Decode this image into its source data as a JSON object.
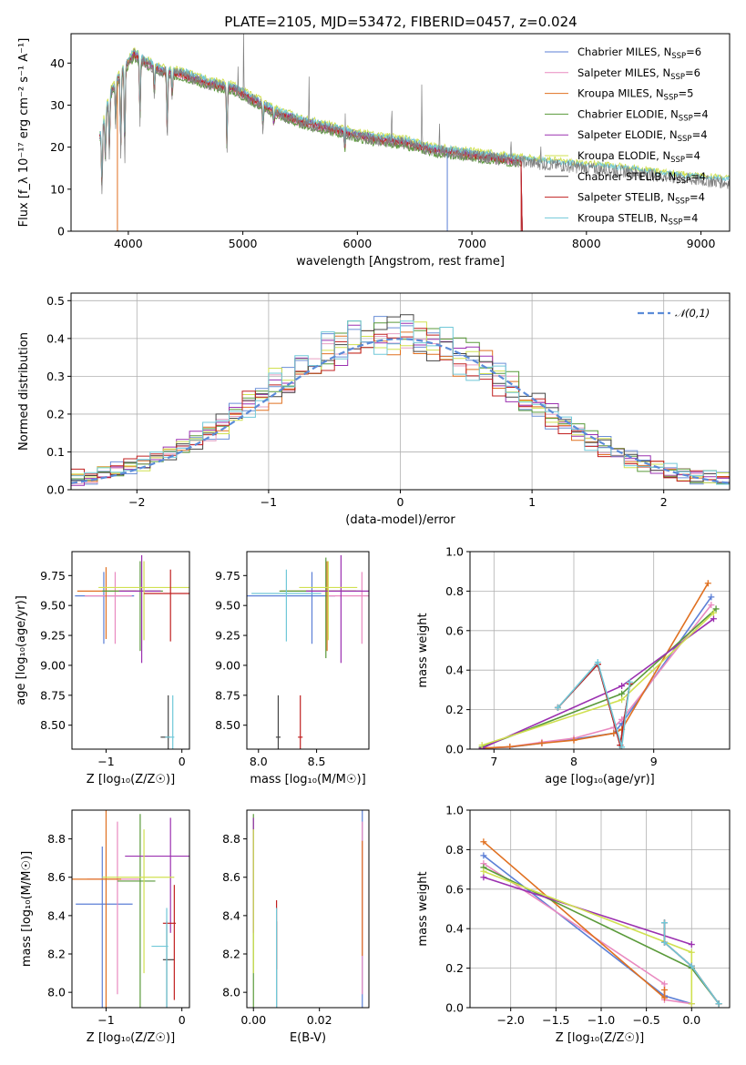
{
  "title": "PLATE=2105, MJD=53472, FIBERID=0457, z=0.024",
  "colors": [
    "#6b8fd6",
    "#e6a0c4",
    "#b8860b",
    "#5a9a5a",
    "#9b30c0",
    "#d8e66a",
    "#333333",
    "#b22222",
    "#7dd8e8"
  ],
  "model_colors": [
    "#5b7fd6",
    "#e98ac0",
    "#e07020",
    "#5a9a3a",
    "#9b30b0",
    "#d0e050",
    "#444444",
    "#c02020",
    "#70c8d8"
  ],
  "legend": [
    {
      "name": "Chabrier MILES",
      "nssp": "6"
    },
    {
      "name": "Salpeter MILES",
      "nssp": "6"
    },
    {
      "name": "Kroupa MILES",
      "nssp": "5"
    },
    {
      "name": "Chabrier ELODIE",
      "nssp": "4"
    },
    {
      "name": "Salpeter ELODIE",
      "nssp": "4"
    },
    {
      "name": "Kroupa ELODIE",
      "nssp": "4"
    },
    {
      "name": "Chabrier STELIB",
      "nssp": "4"
    },
    {
      "name": "Salpeter STELIB",
      "nssp": "4"
    },
    {
      "name": "Kroupa STELIB",
      "nssp": "4"
    }
  ],
  "chart_data": [
    {
      "id": "spectrum",
      "type": "line",
      "xlabel": "wavelength [Angstrom, rest frame]",
      "ylabel": "Flux [f_λ 10⁻¹⁷ erg cm⁻² s⁻¹ A⁻¹]",
      "xlim": [
        3500,
        9250
      ],
      "ylim": [
        0,
        47
      ],
      "xticks": [
        4000,
        5000,
        6000,
        7000,
        8000,
        9000
      ],
      "yticks": [
        0,
        10,
        20,
        30,
        40
      ],
      "continuum": [
        [
          3750,
          22
        ],
        [
          3850,
          33
        ],
        [
          3950,
          38
        ],
        [
          4050,
          42
        ],
        [
          4150,
          40
        ],
        [
          4300,
          38
        ],
        [
          4500,
          37
        ],
        [
          4700,
          35
        ],
        [
          4900,
          34
        ],
        [
          5100,
          31
        ],
        [
          5300,
          28
        ],
        [
          5500,
          26
        ],
        [
          5800,
          24
        ],
        [
          6100,
          22
        ],
        [
          6400,
          21
        ],
        [
          6700,
          19
        ],
        [
          7000,
          18
        ],
        [
          7300,
          17
        ],
        [
          7600,
          16
        ],
        [
          8000,
          15
        ],
        [
          8400,
          14
        ],
        [
          8800,
          12.5
        ],
        [
          9250,
          11.5
        ]
      ],
      "absorption": [
        [
          3770,
          14
        ],
        [
          3800,
          10
        ],
        [
          3835,
          12
        ],
        [
          3890,
          9
        ],
        [
          3934,
          18
        ],
        [
          3969,
          20
        ],
        [
          4102,
          14
        ],
        [
          4227,
          6
        ],
        [
          4340,
          14
        ],
        [
          4383,
          6
        ],
        [
          4861,
          14
        ],
        [
          5175,
          5
        ],
        [
          5270,
          3
        ],
        [
          5890,
          4
        ]
      ],
      "emission": [
        [
          4959,
          8
        ],
        [
          5007,
          18
        ],
        [
          5577,
          15
        ],
        [
          5893,
          10
        ],
        [
          6300,
          12
        ],
        [
          6563,
          16
        ],
        [
          6717,
          8
        ],
        [
          7340,
          8
        ],
        [
          7600,
          6
        ]
      ]
    },
    {
      "id": "residuals",
      "type": "histogram",
      "xlabel": "(data-model)/error",
      "ylabel": "Normed distribution",
      "xlim": [
        -2.5,
        2.5
      ],
      "ylim": [
        0,
        0.52
      ],
      "xticks": [
        -2,
        -1,
        0,
        1,
        2
      ],
      "yticks": [
        0.0,
        0.1,
        0.2,
        0.3,
        0.4,
        0.5
      ],
      "bin_width": 0.1,
      "curve_label": "𝒩(0,1)",
      "profile": [
        0.04,
        0.045,
        0.05,
        0.055,
        0.06,
        0.065,
        0.07,
        0.075,
        0.085,
        0.095,
        0.11,
        0.13,
        0.15,
        0.17,
        0.19,
        0.21,
        0.23,
        0.25,
        0.27,
        0.29,
        0.31,
        0.33,
        0.345,
        0.36,
        0.37,
        0.38,
        0.385,
        0.39,
        0.385,
        0.38,
        0.375,
        0.37,
        0.36,
        0.355,
        0.35,
        0.345,
        0.34,
        0.345,
        0.35,
        0.345,
        0.33,
        0.31,
        0.29,
        0.27,
        0.25,
        0.23,
        0.2,
        0.17,
        0.14,
        0.12,
        0.1,
        0.085,
        0.075,
        0.07,
        0.065,
        0.06,
        0.055,
        0.05,
        0.045,
        0.04,
        0.035,
        0.032,
        0.03,
        0.028,
        0.026,
        0.025,
        0.024,
        0.023,
        0.022,
        0.021,
        0.02,
        0.02,
        0.02,
        0.02,
        0.02,
        0.02,
        0.02,
        0.02,
        0.02,
        0.02
      ]
    },
    {
      "id": "age_vs_Z",
      "type": "errorbar",
      "xlabel": "Z [log₁₀(Z/Z☉)]",
      "ylabel": "age  [log₁₀(age/yr)]",
      "xlim": [
        -1.45,
        0.1
      ],
      "ylim": [
        8.3,
        9.95
      ],
      "xticks": [
        -1,
        0
      ],
      "yticks": [
        8.5,
        8.75,
        9.0,
        9.25,
        9.5,
        9.75
      ],
      "points": [
        [
          -1.03,
          9.58,
          0.38,
          0.4,
          0.2
        ],
        [
          -0.88,
          9.58,
          0.4,
          0.22,
          0.2
        ],
        [
          -1.0,
          9.62,
          0.38,
          0.4,
          0.2
        ],
        [
          -0.55,
          9.62,
          0.5,
          0.3,
          0.25
        ],
        [
          -0.53,
          9.62,
          0.3,
          0.25,
          0.3
        ],
        [
          -0.5,
          9.65,
          0.6,
          0.6,
          0.22
        ],
        [
          -0.18,
          8.4,
          0.1,
          0.02,
          0.35
        ],
        [
          -0.15,
          9.6,
          0.35,
          0.4,
          0.2
        ],
        [
          -0.12,
          8.4,
          0.1,
          0.02,
          0.35
        ]
      ]
    },
    {
      "id": "age_vs_mass",
      "type": "errorbar",
      "xlabel": "mass [log₁₀(M/M☉)]",
      "ylabel": "",
      "xlim": [
        7.9,
        8.95
      ],
      "ylim": [
        8.3,
        9.95
      ],
      "xticks": [
        8.0,
        8.5
      ],
      "yticks": [
        8.5,
        8.75,
        9.0,
        9.25,
        9.5,
        9.75
      ],
      "points": [
        [
          8.46,
          9.58,
          0.6,
          0.2,
          0.2
        ],
        [
          8.89,
          9.58,
          0.3,
          0.25,
          0.2
        ],
        [
          8.59,
          9.62,
          0.4,
          0.25,
          0.25
        ],
        [
          8.58,
          9.62,
          0.4,
          0.3,
          0.28
        ],
        [
          8.71,
          9.62,
          0.3,
          0.3,
          0.3
        ],
        [
          8.6,
          9.65,
          0.25,
          0.25,
          0.22
        ],
        [
          8.17,
          8.4,
          0.02,
          0.02,
          0.35
        ],
        [
          8.36,
          8.4,
          0.02,
          0.02,
          0.35
        ],
        [
          8.24,
          9.6,
          0.3,
          0.3,
          0.2
        ]
      ]
    },
    {
      "id": "weight_vs_age",
      "type": "line",
      "xlabel": "age  [log₁₀(age/yr)]",
      "ylabel": "mass weight",
      "xlim": [
        6.7,
        9.95
      ],
      "ylim": [
        0,
        1.0
      ],
      "xticks": [
        7,
        8,
        9
      ],
      "yticks": [
        0.0,
        0.2,
        0.4,
        0.6,
        0.8,
        1.0
      ],
      "series": [
        {
          "x": [
            6.85,
            7.2,
            7.6,
            8.0,
            8.5,
            8.6,
            9.72
          ],
          "y": [
            0.005,
            0.01,
            0.03,
            0.05,
            0.08,
            0.13,
            0.77
          ]
        },
        {
          "x": [
            6.85,
            7.2,
            7.6,
            8.0,
            8.5,
            8.6,
            9.72
          ],
          "y": [
            0.005,
            0.012,
            0.035,
            0.055,
            0.11,
            0.15,
            0.73
          ]
        },
        {
          "x": [
            6.85,
            7.2,
            7.6,
            8.0,
            8.5,
            8.6,
            9.68
          ],
          "y": [
            0.005,
            0.012,
            0.03,
            0.045,
            0.08,
            0.1,
            0.84
          ]
        },
        {
          "x": [
            6.85,
            8.6,
            9.78
          ],
          "y": [
            0.01,
            0.28,
            0.71
          ]
        },
        {
          "x": [
            6.85,
            8.6,
            9.75
          ],
          "y": [
            0.005,
            0.32,
            0.66
          ]
        },
        {
          "x": [
            6.85,
            8.6,
            9.75
          ],
          "y": [
            0.02,
            0.25,
            0.69
          ]
        },
        {
          "x": [
            7.8,
            8.3,
            8.58,
            8.7
          ],
          "y": [
            0.21,
            0.43,
            0.02,
            0.33
          ]
        },
        {
          "x": [
            7.8,
            8.3,
            8.58,
            8.7
          ],
          "y": [
            0.21,
            0.43,
            0.02,
            0.33
          ]
        },
        {
          "x": [
            7.8,
            8.3,
            8.6,
            8.7
          ],
          "y": [
            0.21,
            0.44,
            0.01,
            0.34
          ]
        }
      ]
    },
    {
      "id": "mass_vs_Z",
      "type": "errorbar",
      "xlabel": "Z [log₁₀(Z/Z☉)]",
      "ylabel": "mass [log₁₀(M/M☉)]",
      "xlim": [
        -1.45,
        0.1
      ],
      "ylim": [
        7.92,
        8.95
      ],
      "xticks": [
        -1,
        0
      ],
      "yticks": [
        8.0,
        8.2,
        8.4,
        8.6,
        8.8
      ],
      "points": [
        [
          -1.05,
          8.46,
          0.35,
          0.4,
          0.3
        ],
        [
          -0.85,
          8.59,
          0.4,
          0.3,
          0.3
        ],
        [
          -1.0,
          8.59,
          0.55,
          0.2,
          0.5
        ],
        [
          -0.55,
          8.58,
          0.3,
          0.2,
          0.35
        ],
        [
          -0.15,
          8.71,
          0.6,
          0.6,
          0.2
        ],
        [
          -0.5,
          8.6,
          0.55,
          0.4,
          0.25
        ],
        [
          -0.2,
          8.17,
          0.05,
          0.1,
          0.2
        ],
        [
          -0.1,
          8.36,
          0.15,
          0.02,
          0.2
        ],
        [
          -0.2,
          8.24,
          0.2,
          0.02,
          0.2
        ]
      ]
    },
    {
      "id": "mass_vs_ebv",
      "type": "errorbar",
      "xlabel": "E(B-V)",
      "ylabel": "",
      "xlim": [
        -0.002,
        0.035
      ],
      "ylim": [
        7.92,
        8.95
      ],
      "xticks": [
        0.0,
        0.02
      ],
      "yticks": [
        8.0,
        8.2,
        8.4,
        8.6,
        8.8
      ],
      "points": [
        [
          0.033,
          8.46,
          0,
          0,
          0.5
        ],
        [
          0.033,
          8.59,
          0,
          0,
          0.3
        ],
        [
          0.033,
          8.59,
          0,
          0,
          0.2
        ],
        [
          0.0,
          8.58,
          0,
          0,
          0.35
        ],
        [
          0.0,
          8.71,
          0,
          0,
          0.2
        ],
        [
          0.0,
          8.6,
          0,
          0,
          0.25
        ],
        [
          0.007,
          8.17,
          0,
          0,
          0.2
        ],
        [
          0.007,
          8.36,
          0,
          0,
          0.12
        ],
        [
          0.007,
          8.24,
          0,
          0,
          0.2
        ]
      ]
    },
    {
      "id": "weight_vs_Z",
      "type": "line",
      "xlabel": "Z [log₁₀(Z/Z☉)]",
      "ylabel": "mass weight",
      "xlim": [
        -2.45,
        0.42
      ],
      "ylim": [
        0,
        1.0
      ],
      "xticks": [
        -2.0,
        -1.5,
        -1.0,
        -0.5,
        0.0
      ],
      "yticks": [
        0.0,
        0.2,
        0.4,
        0.6,
        0.8,
        1.0
      ],
      "series": [
        {
          "x": [
            -2.3,
            -0.3,
            0.0
          ],
          "y": [
            0.77,
            0.06,
            0.02
          ]
        },
        {
          "x": [
            -2.3,
            -0.3,
            -0.3,
            0.0
          ],
          "y": [
            0.73,
            0.12,
            0.04,
            0.02
          ]
        },
        {
          "x": [
            -2.3,
            -0.3,
            -0.3
          ],
          "y": [
            0.84,
            0.05,
            0.09
          ]
        },
        {
          "x": [
            -2.3,
            0.0,
            0.3
          ],
          "y": [
            0.71,
            0.2,
            0.02
          ]
        },
        {
          "x": [
            -2.3,
            0.0
          ],
          "y": [
            0.66,
            0.32
          ]
        },
        {
          "x": [
            -2.3,
            0.0,
            0.0
          ],
          "y": [
            0.69,
            0.28,
            0.02
          ]
        },
        {
          "x": [
            -0.3,
            -0.3,
            0.0,
            0.3
          ],
          "y": [
            0.43,
            0.33,
            0.21,
            0.02
          ]
        },
        {
          "x": [
            -0.3,
            -0.3,
            0.0,
            0.3
          ],
          "y": [
            0.43,
            0.33,
            0.21,
            0.02
          ]
        },
        {
          "x": [
            -0.3,
            -0.3,
            0.0,
            0.3
          ],
          "y": [
            0.43,
            0.33,
            0.21,
            0.02
          ]
        }
      ]
    }
  ]
}
